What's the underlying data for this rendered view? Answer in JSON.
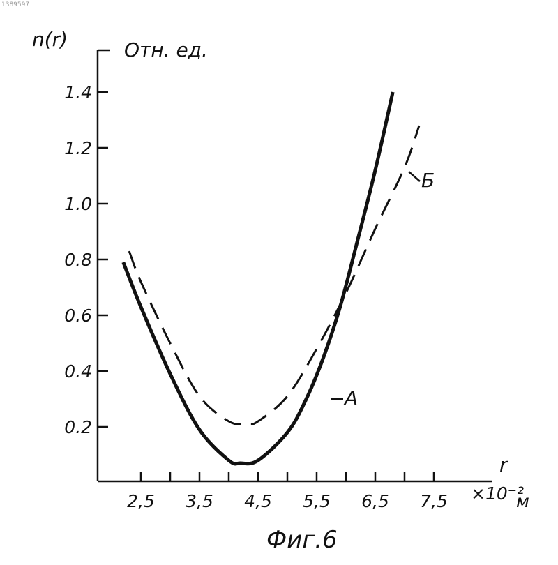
{
  "page_number": "1389597",
  "caption": "Фиг.6",
  "chart_data": {
    "type": "line",
    "ylabel": "n(r)",
    "yunit": "Отн. ед.",
    "xlabel": "r",
    "xunit_multiplier": "×10⁻²",
    "xunit": "м",
    "xlim": [
      2.0,
      8.0
    ],
    "ylim": [
      0.0,
      1.5
    ],
    "x_ticks": [
      2.5,
      3.0,
      3.5,
      4.0,
      4.5,
      5.0,
      5.5,
      6.0,
      6.5,
      7.0,
      7.5
    ],
    "x_tick_labels": [
      "2,5",
      "3,5",
      "4,5",
      "5,5",
      "6,5",
      "7,5"
    ],
    "y_ticks": [
      0.2,
      0.4,
      0.6,
      0.8,
      1.0,
      1.2,
      1.4
    ],
    "y_tick_labels": [
      "0.2",
      "0.4",
      "0.6",
      "0.8",
      "1.0",
      "1.2",
      "1.4"
    ],
    "grid": false,
    "series": [
      {
        "name": "A",
        "style": "solid",
        "color": "#111111",
        "x": [
          2.2,
          2.5,
          3.0,
          3.5,
          4.0,
          4.2,
          4.5,
          5.0,
          5.3,
          5.6,
          5.9,
          6.2,
          6.5,
          6.8
        ],
        "y": [
          0.79,
          0.63,
          0.39,
          0.19,
          0.08,
          0.07,
          0.08,
          0.18,
          0.29,
          0.44,
          0.63,
          0.87,
          1.12,
          1.4
        ]
      },
      {
        "name": "Б",
        "style": "dashed",
        "color": "#111111",
        "x": [
          2.3,
          2.5,
          3.0,
          3.5,
          4.0,
          4.3,
          4.5,
          5.0,
          5.5,
          6.0,
          6.5,
          7.0,
          7.25
        ],
        "y": [
          0.83,
          0.72,
          0.5,
          0.31,
          0.22,
          0.21,
          0.22,
          0.31,
          0.48,
          0.68,
          0.91,
          1.13,
          1.28
        ]
      }
    ]
  }
}
